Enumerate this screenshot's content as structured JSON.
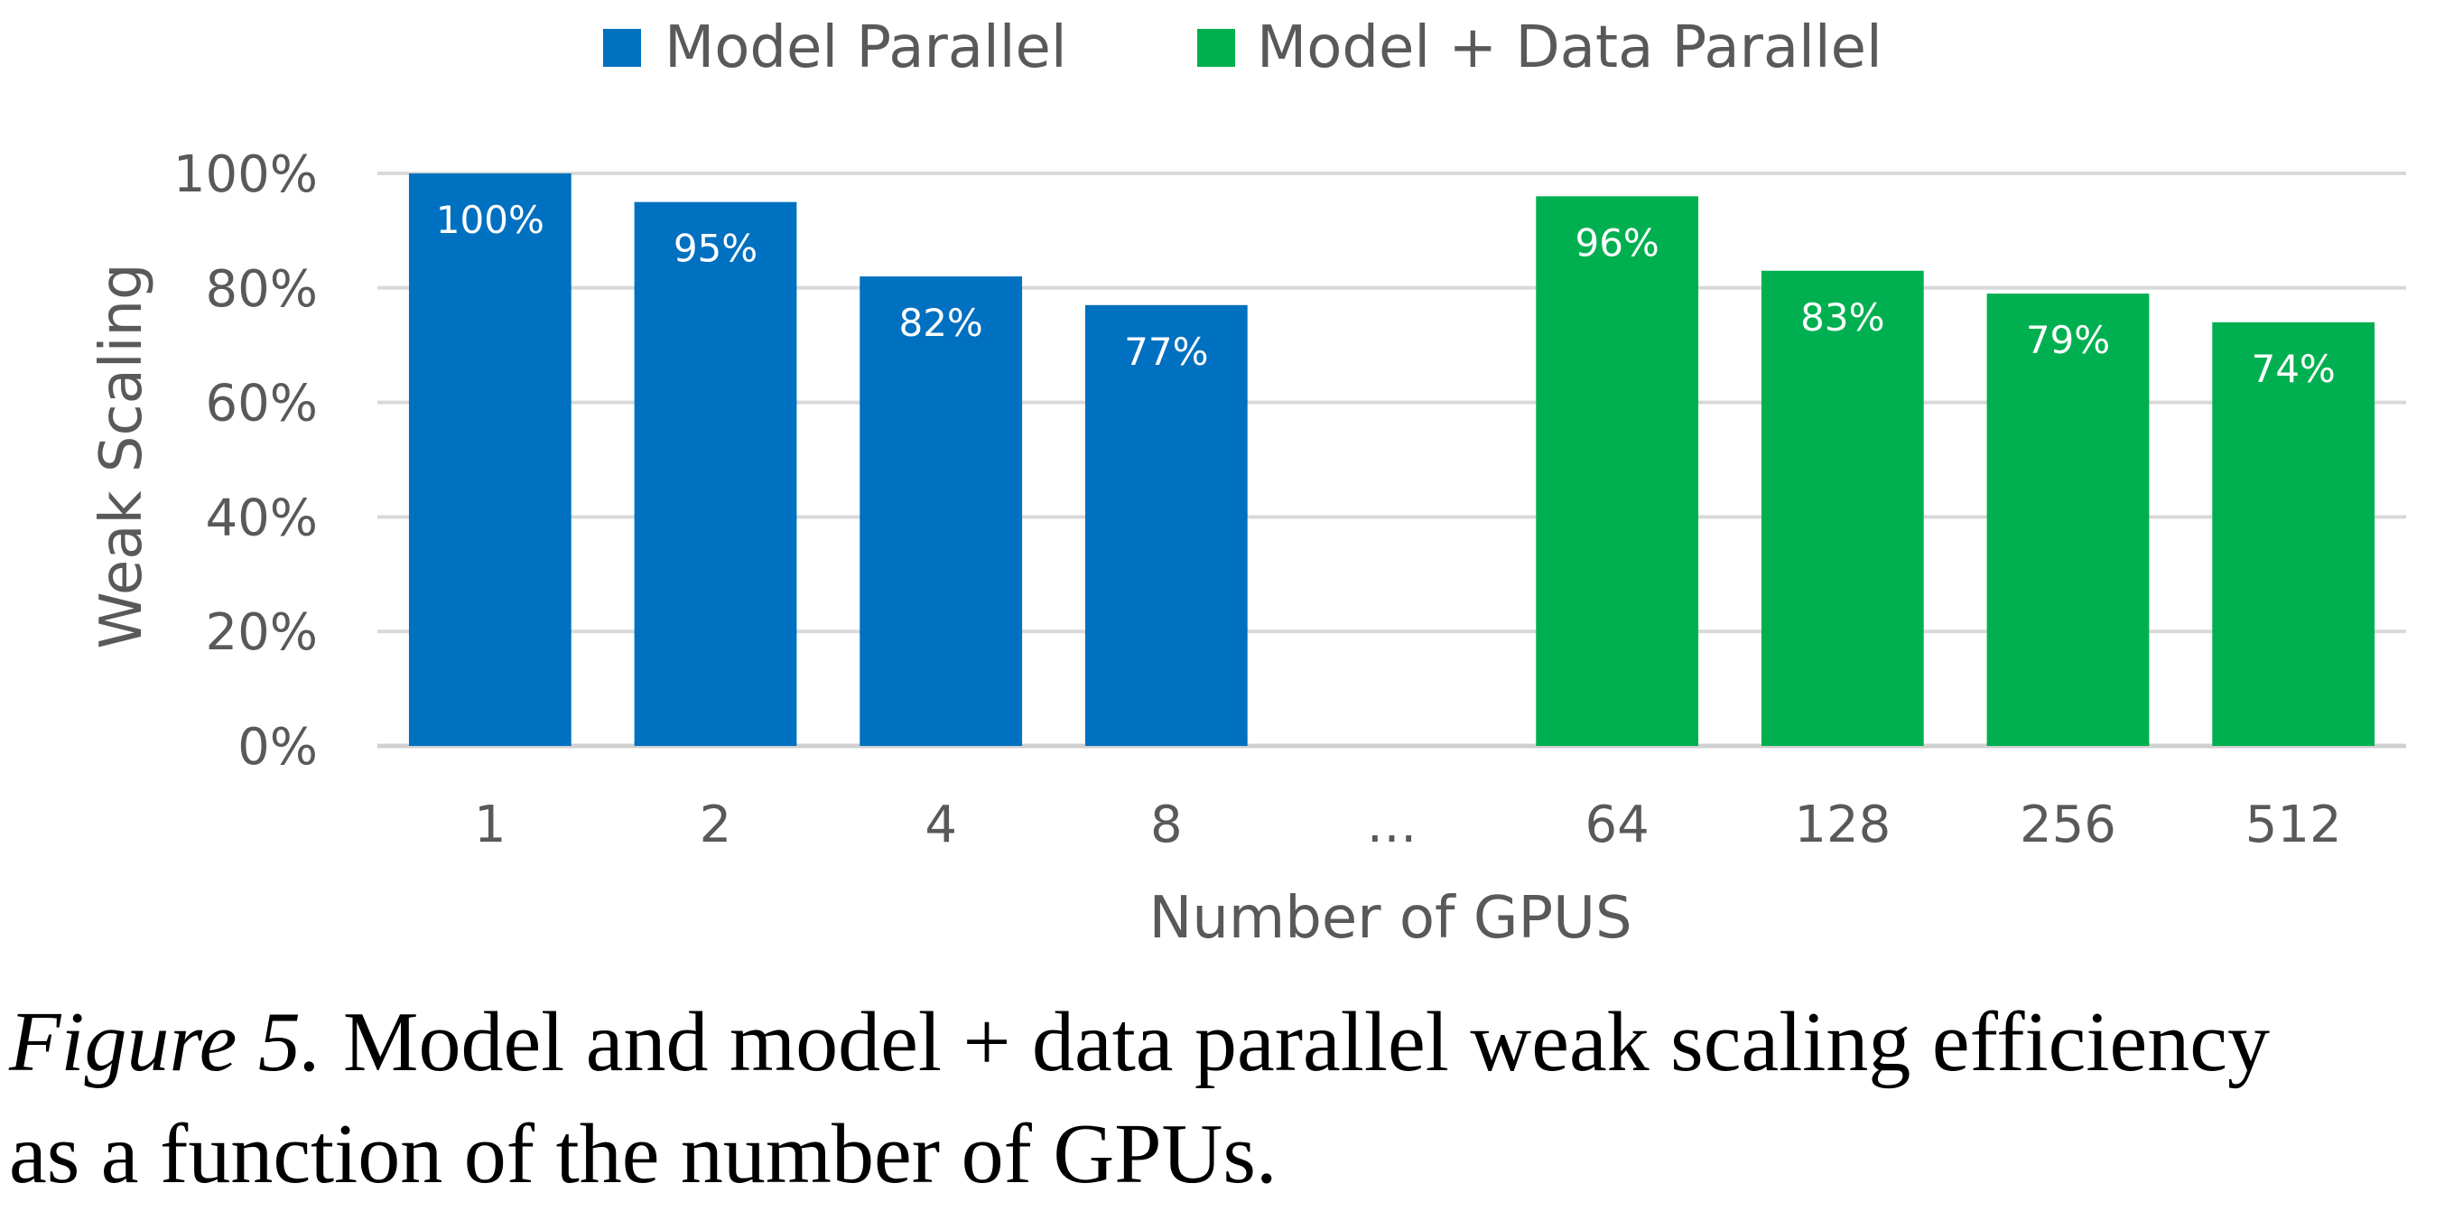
{
  "chart_data": {
    "type": "bar",
    "categories": [
      "1",
      "2",
      "4",
      "8",
      "…",
      "64",
      "128",
      "256",
      "512"
    ],
    "series": [
      {
        "name": "Model Parallel",
        "color": "#0070C0",
        "values": [
          100,
          95,
          82,
          77,
          null,
          null,
          null,
          null,
          null
        ],
        "labels": [
          "100%",
          "95%",
          "82%",
          "77%",
          "",
          "",
          "",
          "",
          ""
        ]
      },
      {
        "name": "Model + Data Parallel",
        "color": "#00B050",
        "values": [
          null,
          null,
          null,
          null,
          null,
          96,
          83,
          79,
          74
        ],
        "labels": [
          "",
          "",
          "",
          "",
          "",
          "96%",
          "83%",
          "79%",
          "74%"
        ]
      }
    ],
    "yticks": [
      "0%",
      "20%",
      "40%",
      "60%",
      "80%",
      "100%"
    ],
    "ylim": [
      0,
      100
    ],
    "ylabel": "Weak Scaling",
    "xlabel": "Number of GPUS",
    "grid": true,
    "legend": "top-center"
  },
  "caption": {
    "label": "Figure 5.",
    "text": "Model and model + data parallel weak scaling efficiency",
    "text2": "as a function of the number of GPUs."
  }
}
